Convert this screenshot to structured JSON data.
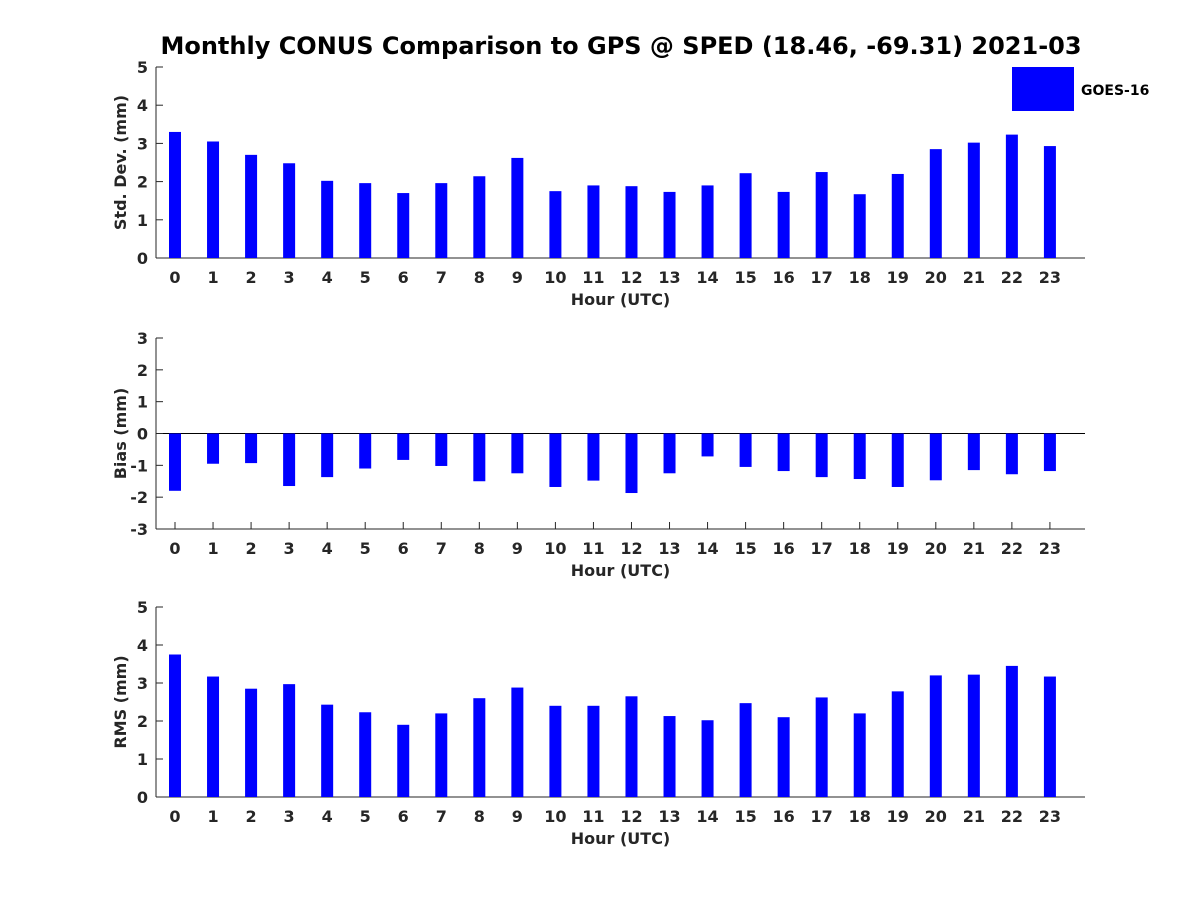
{
  "title": "Monthly CONUS Comparison to GPS @ SPED (18.46, -69.31) 2021-03",
  "legend": {
    "label": "GOES-16",
    "placement": "top-right"
  },
  "colors": {
    "bar": "#0000ff",
    "axis": "#262626",
    "text": "#262626"
  },
  "chart_data": [
    {
      "type": "bar",
      "xlabel": "Hour (UTC)",
      "ylabel": "Std. Dev. (mm)",
      "ylim": [
        0,
        5
      ],
      "yticks": [
        0,
        1,
        2,
        3,
        4,
        5
      ],
      "categories": [
        "0",
        "1",
        "2",
        "3",
        "4",
        "5",
        "6",
        "7",
        "8",
        "9",
        "10",
        "11",
        "12",
        "13",
        "14",
        "15",
        "16",
        "17",
        "18",
        "19",
        "20",
        "21",
        "22",
        "23"
      ],
      "series": [
        {
          "name": "GOES-16",
          "values": [
            3.3,
            3.05,
            2.7,
            2.48,
            2.02,
            1.96,
            1.7,
            1.96,
            2.14,
            2.62,
            1.75,
            1.9,
            1.88,
            1.73,
            1.9,
            2.22,
            1.73,
            2.25,
            1.67,
            2.2,
            2.85,
            3.02,
            3.23,
            2.93
          ]
        }
      ],
      "grid": false
    },
    {
      "type": "bar",
      "xlabel": "Hour (UTC)",
      "ylabel": "Bias (mm)",
      "ylim": [
        -3,
        3
      ],
      "yticks": [
        -3,
        -2,
        -1,
        0,
        1,
        2,
        3
      ],
      "categories": [
        "0",
        "1",
        "2",
        "3",
        "4",
        "5",
        "6",
        "7",
        "8",
        "9",
        "10",
        "11",
        "12",
        "13",
        "14",
        "15",
        "16",
        "17",
        "18",
        "19",
        "20",
        "21",
        "22",
        "23"
      ],
      "series": [
        {
          "name": "GOES-16",
          "values": [
            -1.8,
            -0.95,
            -0.93,
            -1.65,
            -1.37,
            -1.1,
            -0.83,
            -1.02,
            -1.5,
            -1.25,
            -1.68,
            -1.48,
            -1.87,
            -1.25,
            -0.72,
            -1.05,
            -1.18,
            -1.37,
            -1.43,
            -1.68,
            -1.47,
            -1.15,
            -1.28,
            -1.18
          ]
        }
      ],
      "grid": false
    },
    {
      "type": "bar",
      "xlabel": "Hour (UTC)",
      "ylabel": "RMS (mm)",
      "ylim": [
        0,
        5
      ],
      "yticks": [
        0,
        1,
        2,
        3,
        4,
        5
      ],
      "categories": [
        "0",
        "1",
        "2",
        "3",
        "4",
        "5",
        "6",
        "7",
        "8",
        "9",
        "10",
        "11",
        "12",
        "13",
        "14",
        "15",
        "16",
        "17",
        "18",
        "19",
        "20",
        "21",
        "22",
        "23"
      ],
      "series": [
        {
          "name": "GOES-16",
          "values": [
            3.75,
            3.17,
            2.85,
            2.97,
            2.43,
            2.23,
            1.9,
            2.2,
            2.6,
            2.88,
            2.4,
            2.4,
            2.65,
            2.13,
            2.02,
            2.47,
            2.1,
            2.62,
            2.2,
            2.78,
            3.2,
            3.22,
            3.45,
            3.17
          ]
        }
      ],
      "grid": false
    }
  ]
}
